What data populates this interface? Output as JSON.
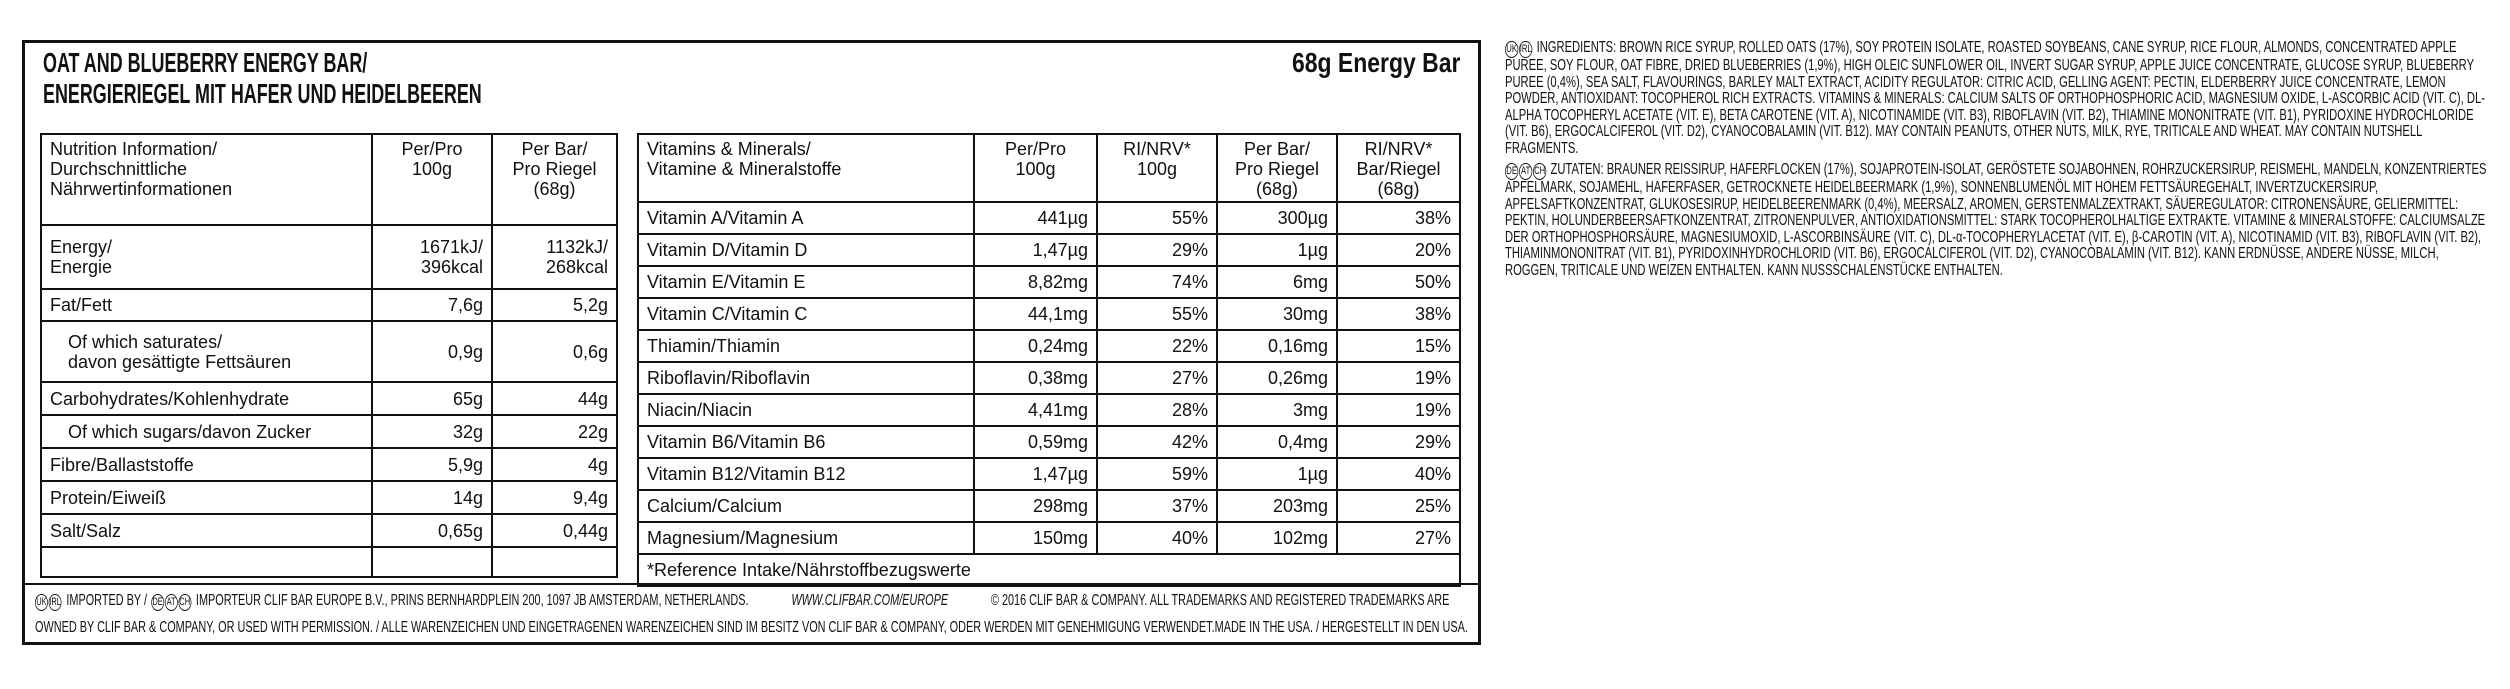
{
  "header": {
    "title_lines": [
      "OAT AND BLUEBERRY ENERGY BAR/",
      "ENERGIERIEGEL MIT HAFER UND HEIDELBEEREN"
    ],
    "weight": "68g Energy Bar"
  },
  "nutrition_table": {
    "header": [
      "Nutrition Information/\nDurchschnittliche\nNährwertinformationen",
      "Per/Pro\n100g",
      "Per Bar/\nPro Riegel\n(68g)"
    ],
    "rows": [
      [
        "Energy/\nEnergie",
        "1671kJ/\n396kcal",
        "1132kJ/\n268kcal"
      ],
      [
        "Fat/Fett",
        "7,6g",
        "5,2g"
      ],
      [
        "Of which saturates/\ndavon gesättigte Fettsäuren",
        "0,9g",
        "0,6g"
      ],
      [
        "Carbohydrates/Kohlenhydrate",
        "65g",
        "44g"
      ],
      [
        "Of which sugars/davon Zucker",
        "32g",
        "22g"
      ],
      [
        "Fibre/Ballaststoffe",
        "5,9g",
        "4g"
      ],
      [
        "Protein/Eiweiß",
        "14g",
        "9,4g"
      ],
      [
        "Salt/Salz",
        "0,65g",
        "0,44g"
      ]
    ]
  },
  "vitamin_table": {
    "header": [
      "Vitamins & Minerals/\nVitamine & Mineralstoffe",
      "Per/Pro\n100g",
      "RI/NRV*\n100g",
      "Per Bar/\nPro Riegel (68g)",
      "RI/NRV*\nBar/Riegel (68g)"
    ],
    "rows": [
      [
        "Vitamin A/Vitamin A",
        "441µg",
        "55%",
        "300µg",
        "38%"
      ],
      [
        "Vitamin D/Vitamin D",
        "1,47µg",
        "29%",
        "1µg",
        "20%"
      ],
      [
        "Vitamin E/Vitamin E",
        "8,82mg",
        "74%",
        "6mg",
        "50%"
      ],
      [
        "Vitamin C/Vitamin C",
        "44,1mg",
        "55%",
        "30mg",
        "38%"
      ],
      [
        "Thiamin/Thiamin",
        "0,24mg",
        "22%",
        "0,16mg",
        "15%"
      ],
      [
        "Riboflavin/Riboflavin",
        "0,38mg",
        "27%",
        "0,26mg",
        "19%"
      ],
      [
        "Niacin/Niacin",
        "4,41mg",
        "28%",
        "3mg",
        "19%"
      ],
      [
        "Vitamin B6/Vitamin B6",
        "0,59mg",
        "42%",
        "0,4mg",
        "29%"
      ],
      [
        "Vitamin B12/Vitamin B12",
        "1,47µg",
        "59%",
        "1µg",
        "40%"
      ],
      [
        "Calcium/Calcium",
        "298mg",
        "37%",
        "203mg",
        "25%"
      ],
      [
        "Magnesium/Magnesium",
        "150mg",
        "40%",
        "102mg",
        "27%"
      ]
    ],
    "footnote": "*Reference Intake/Nährstoffbezugswerte"
  },
  "footer": {
    "badges_en": [
      "UK",
      "IRL"
    ],
    "imported": "IMPORTED BY /",
    "badges_de": [
      "DE",
      "AT",
      "CH"
    ],
    "importer": "IMPORTEUR CLIF BAR EUROPE B.V., PRINS BERNHARDPLEIN 200, 1097 JB AMSTERDAM, NETHERLANDS.",
    "website": "WWW.CLIFBAR.COM/EUROPE",
    "copyright": "© 2016 CLIF BAR & COMPANY. ALL TRADEMARKS AND REGISTERED TRADEMARKS ARE",
    "ownership": "OWNED BY CLIF BAR & COMPANY, OR USED WITH PERMISSION. / ALLE WARENZEICHEN UND EINGETRAGENEN WARENZEICHEN SIND IM BESITZ VON CLIF BAR & COMPANY, ODER WERDEN MIT GENEHMIGUNG VERWENDET.",
    "origin": "MADE IN THE USA. / HERGESTELLT IN DEN USA."
  },
  "ingredients": [
    {
      "badges": [
        "UK",
        "IRL"
      ],
      "text": "INGREDIENTS: BROWN RICE SYRUP, ROLLED OATS (17%), SOY PROTEIN ISOLATE, ROASTED SOYBEANS, CANE SYRUP, RICE FLOUR, ALMONDS, CONCENTRATED APPLE PUREE, SOY FLOUR, OAT FIBRE, DRIED BLUEBERRIES (1,9%), HIGH OLEIC SUNFLOWER OIL, INVERT SUGAR SYRUP, APPLE JUICE CONCENTRATE, GLUCOSE SYRUP, BLUEBERRY PUREE (0,4%), SEA SALT, FLAVOURINGS, BARLEY MALT EXTRACT, ACIDITY REGULATOR: CITRIC ACID, GELLING AGENT: PECTIN, ELDERBERRY JUICE CONCENTRATE, LEMON POWDER, ANTIOXIDANT: TOCOPHEROL RICH EXTRACTS. VITAMINS & MINERALS: CALCIUM SALTS OF ORTHOPHOSPHORIC ACID, MAGNESIUM OXIDE, L-ASCORBIC ACID (VIT. C), DL-ALPHA TOCOPHERYL ACETATE (VIT. E), BETA CAROTENE (VIT. A), NICOTINAMIDE (VIT. B3), RIBOFLAVIN (VIT. B2), THIAMINE MONONITRATE (VIT. B1), PYRIDOXINE HYDROCHLORIDE (VIT. B6), ERGOCALCIFEROL (VIT. D2), CYANOCOBALAMIN (VIT. B12). MAY CONTAIN PEANUTS, OTHER NUTS, MILK, RYE, TRITICALE AND WHEAT. MAY CONTAIN NUTSHELL FRAGMENTS."
    },
    {
      "badges": [
        "DE",
        "AT",
        "CH"
      ],
      "text": "ZUTATEN: BRAUNER REISSIRUP, HAFERFLOCKEN (17%), SOJAPROTEIN-ISOLAT, GERÖSTETE SOJABOHNEN, ROHRZUCKERSIRUP, REISMEHL, MANDELN, KONZENTRIERTES APFELMARK, SOJAMEHL, HAFERFASER, GETROCKNETE HEIDELBEERMARK (1,9%), SONNENBLUMENÖL MIT HOHEM FETTSÄUREGEHALT, INVERTZUCKERSIRUP, APFELSAFTKONZENTRAT, GLUKOSESIRUP, HEIDELBEERENMARK (0,4%), MEERSALZ, AROMEN, GERSTENMALZEXTRAKT, SÄUEREGULATOR: CITRONENSÄURE, GELIERMITTEL: PEKTIN, HOLUNDERBEERSAFTKONZENTRAT, ZITRONENPULVER, ANTIOXIDATIONSMITTEL: STARK TOCOPHEROLHALTIGE EXTRAKTE. VITAMINE & MINERALSTOFFE: CALCIUMSALZE DER ORTHOPHOSPHORSÄURE, MAGNESIUMOXID, L-ASCORBINSÄURE (VIT. C), DL-α-TOCOPHERYLACETAT (VIT. E), β-CAROTIN (VIT. A), NICOTINAMID (VIT. B3), RIBOFLAVIN (VIT. B2), THIAMINMONONITRAT (VIT. B1), PYRIDOXINHYDROCHLORID (VIT. B6), ERGOCALCIFEROL (VIT. D2), CYANOCOBALAMIN (VIT. B12). KANN ERDNÜSSE, ANDERE NÜSSE, MILCH, ROGGEN, TRITICALE UND WEIZEN ENTHALTEN. KANN NUSSSCHALENSTÜCKE ENTHALTEN."
    }
  ]
}
